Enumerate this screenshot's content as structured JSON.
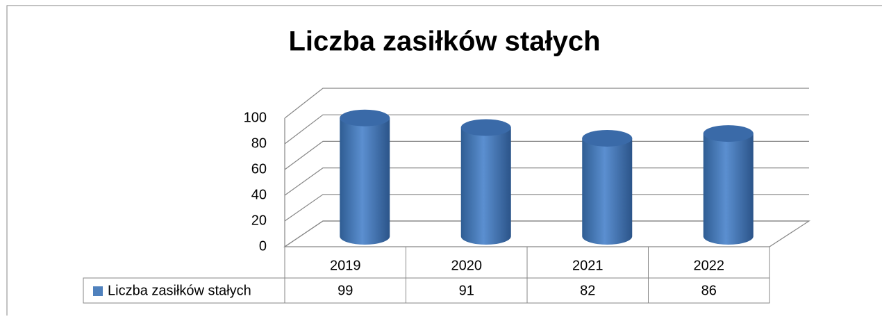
{
  "chart_data": {
    "type": "bar3d",
    "title": "Liczba zasiłków stałych",
    "categories": [
      "2019",
      "2020",
      "2021",
      "2022"
    ],
    "series": [
      {
        "name": "Liczba zasiłków stałych",
        "color": "#4f81bd",
        "values": [
          99,
          91,
          82,
          86
        ]
      }
    ],
    "ylim": [
      0,
      100
    ],
    "yticks": [
      0,
      20,
      40,
      60,
      80,
      100
    ],
    "grid": true,
    "data_table": true
  }
}
